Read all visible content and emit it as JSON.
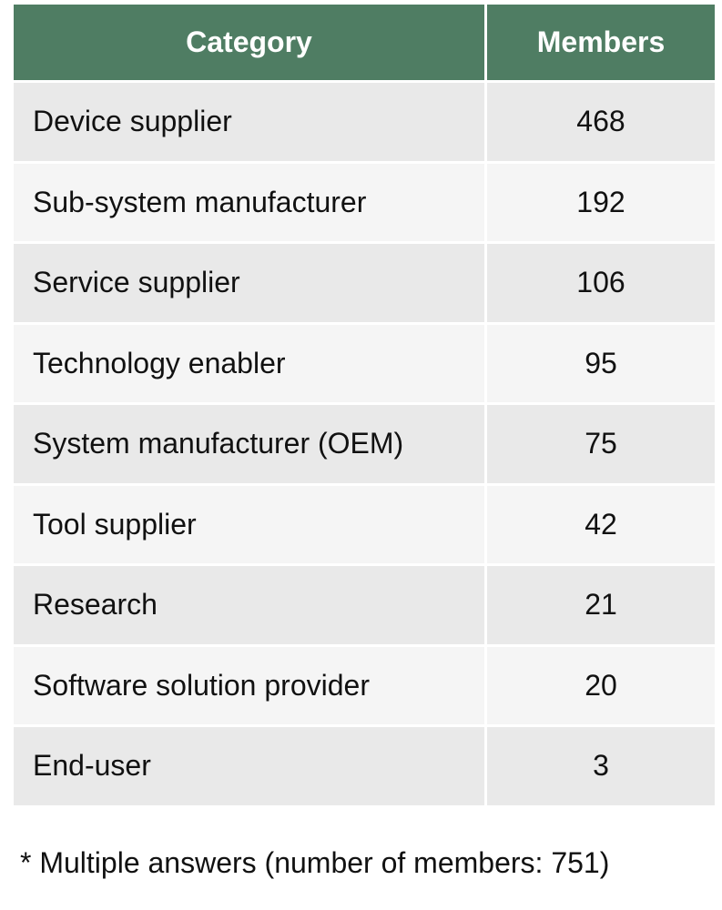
{
  "table": {
    "header": [
      "Category",
      "Members"
    ],
    "rows": [
      [
        "Device supplier",
        "468"
      ],
      [
        "Sub-system manufacturer",
        "192"
      ],
      [
        "Service supplier",
        "106"
      ],
      [
        "Technology enabler",
        "95"
      ],
      [
        "System manufacturer (OEM)",
        "75"
      ],
      [
        "Tool supplier",
        "42"
      ],
      [
        "Research",
        "21"
      ],
      [
        "Software solution provider",
        "20"
      ],
      [
        "End-user",
        "3"
      ]
    ]
  },
  "footnote": "* Multiple answers (number of members: 751)"
}
